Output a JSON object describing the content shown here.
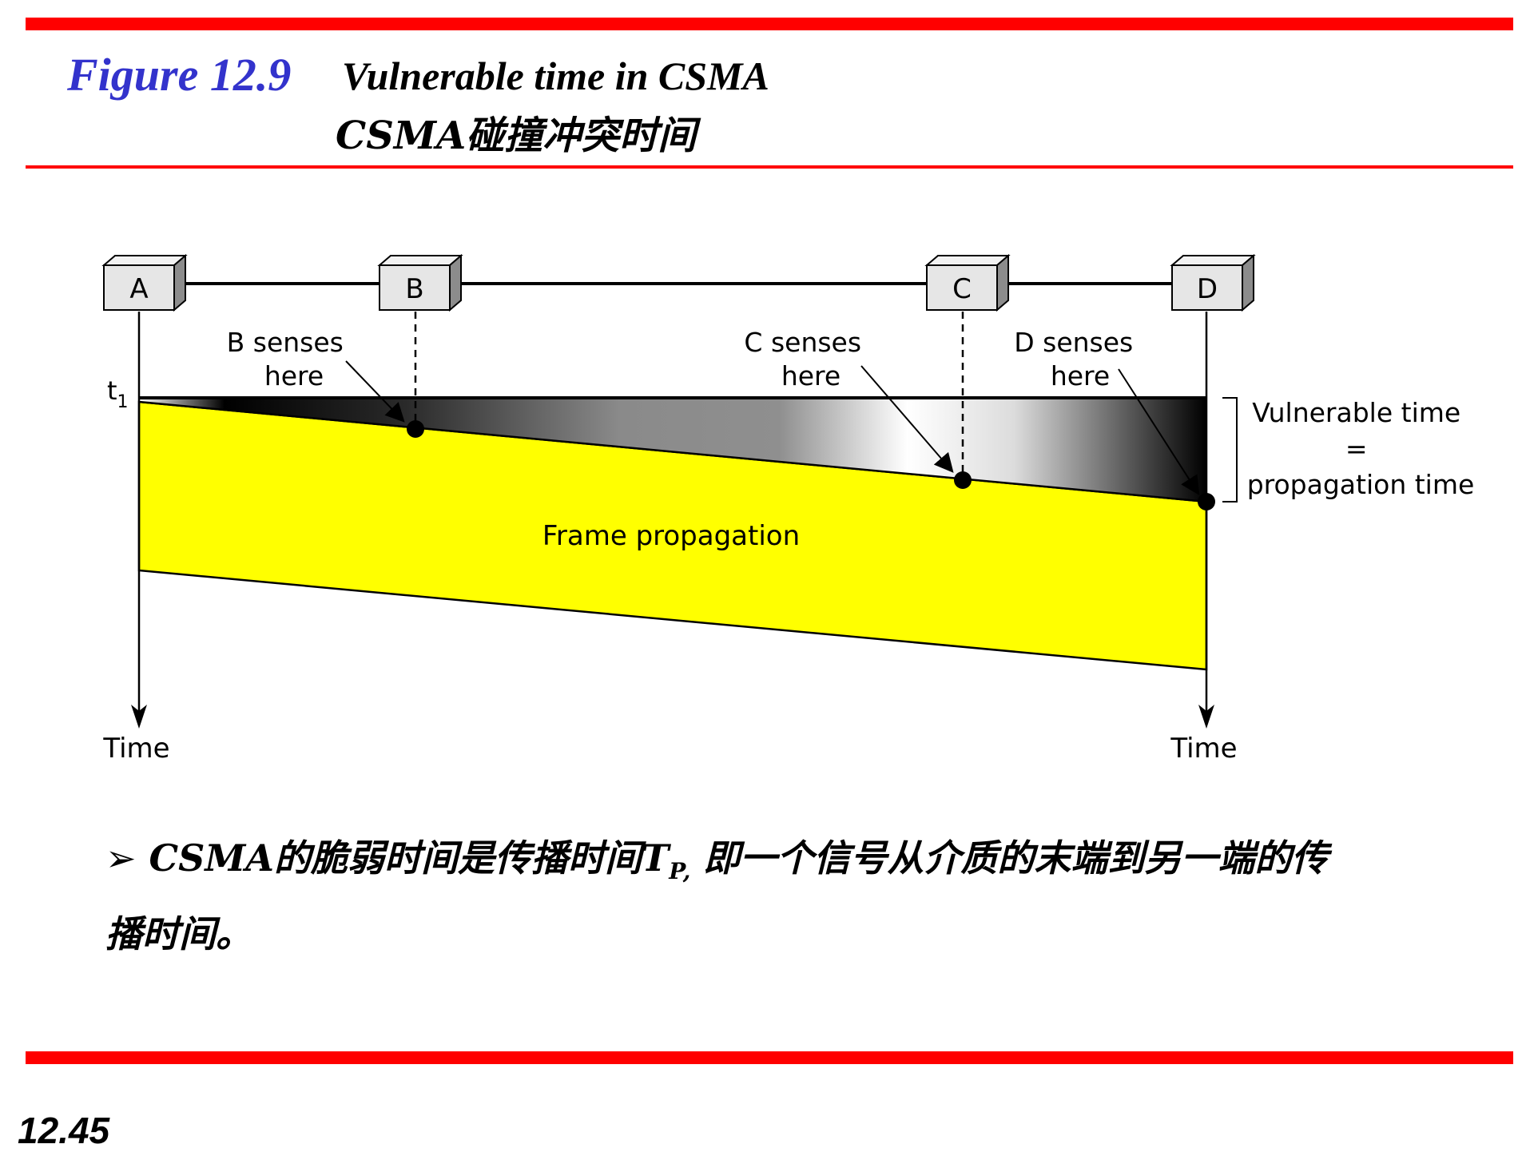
{
  "header": {
    "figure_label": "Figure 12.9",
    "title_en": "Vulnerable time in CSMA",
    "title_zh": "CSMA碰撞冲突时间"
  },
  "diagram": {
    "stations": [
      "A",
      "B",
      "C",
      "D"
    ],
    "time_marker": "t",
    "time_marker_sub": "1",
    "b_senses": [
      "B senses",
      "here"
    ],
    "c_senses": [
      "C senses",
      "here"
    ],
    "d_senses": [
      "D senses",
      "here"
    ],
    "frame_label": "Frame propagation",
    "vulnerable": [
      "Vulnerable time",
      "=",
      "propagation time"
    ],
    "time_label_left": "Time",
    "time_label_right": "Time",
    "colors": {
      "frame": "#ffff00",
      "accent_red": "#ff0000",
      "figure_blue": "#3333cc"
    }
  },
  "note": {
    "bullet": "➢",
    "text_part1": "CSMA的脆弱时间是传播时间T",
    "subscript": "P,",
    "text_part2": " 即一个信号从介质的末端到另一端的传播时间。"
  },
  "footer": {
    "slide_number": "12.45"
  }
}
